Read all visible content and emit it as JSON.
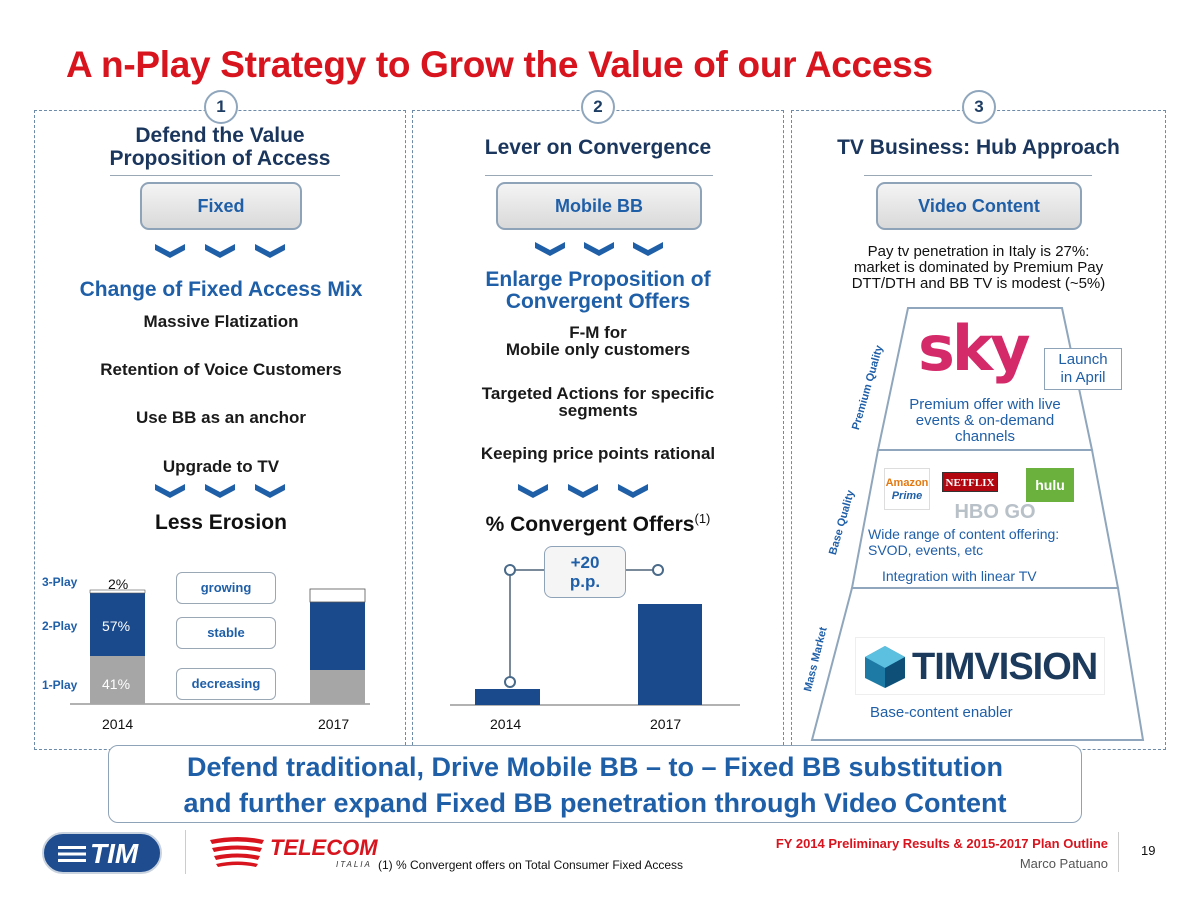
{
  "title": "A n-Play Strategy to Grow the Value of our Access",
  "columns": [
    {
      "number": "1",
      "heading_line1": "Defend the Value",
      "heading_line2": "Proposition of Access",
      "pill": "Fixed",
      "subhead": "Change of Fixed Access Mix",
      "items": [
        "Massive Flatization",
        "Retention of Voice Customers",
        "Use BB as an anchor",
        "Upgrade to TV"
      ],
      "result": "Less Erosion"
    },
    {
      "number": "2",
      "heading": "Lever on Convergence",
      "pill": "Mobile BB",
      "subhead_line1": "Enlarge Proposition of",
      "subhead_line2": "Convergent Offers",
      "items": [
        {
          "line1": "F-M for",
          "line2": "Mobile only customers"
        },
        {
          "line1": "Targeted Actions for specific",
          "line2": "segments"
        },
        {
          "line1": "Keeping price points rational",
          "line2": ""
        }
      ],
      "result": "% Convergent Offers",
      "result_sup": "(1)"
    },
    {
      "number": "3",
      "heading": "TV Business: Hub Approach",
      "pill": "Video Content",
      "intro_line1": "Pay tv penetration in Italy is 27%:",
      "intro_line2": "market is dominated by Premium Pay",
      "intro_line3": "DTT/DTH and BB TV is modest (~5%)",
      "tier_labels": [
        "Premium Quality",
        "Base Quality",
        "Mass Market"
      ],
      "sky_logo": "sky",
      "launch_line1": "Launch",
      "launch_line2": "in April",
      "premium_text_line1": "Premium offer with live",
      "premium_text_line2": "events & on-demand",
      "premium_text_line3": "channels",
      "logos": {
        "amazon_line1": "Amazon",
        "amazon_line2": "Prime",
        "netflix": "NETFLIX",
        "hulu": "hulu",
        "hbo": "HBO GO"
      },
      "base_text_line1": "Wide range of content offering:",
      "base_text_line2": "SVOD, events, etc",
      "base_text_line3": "Integration with linear TV",
      "timvision": "TIMVISION",
      "mass_text": "Base-content enabler"
    }
  ],
  "chart_data": [
    {
      "type": "bar",
      "stacked": true,
      "categories": [
        "2014",
        "2017"
      ],
      "series": [
        {
          "name": "1-Play",
          "values": [
            41,
            null
          ],
          "color": "#a6a6a6",
          "label": "decreasing"
        },
        {
          "name": "2-Play",
          "values": [
            57,
            null
          ],
          "color": "#1b4a8c",
          "label": "stable"
        },
        {
          "name": "3-Play",
          "values": [
            2,
            null
          ],
          "color": "#ffffff",
          "label": "growing"
        }
      ],
      "data_labels_2014": [
        "41%",
        "57%",
        "2%"
      ]
    },
    {
      "type": "bar",
      "categories": [
        "2014",
        "2017"
      ],
      "values": [
        null,
        null
      ],
      "annotation_line1": "+20",
      "annotation_line2": "p.p."
    }
  ],
  "bottom": {
    "line1": "Defend traditional, Drive Mobile BB – to – Fixed BB substitution",
    "line2": "and further expand Fixed BB penetration through Video Content"
  },
  "footer": {
    "tim_logo": "TIM",
    "telecom_logo": "TELECOM",
    "telecom_sub": "ITALIA",
    "note": "(1) % Convergent offers on Total Consumer Fixed Access",
    "right_title": "FY 2014 Preliminary Results & 2015-2017 Plan Outline",
    "presenter": "Marco Patuano",
    "page": "19"
  },
  "colors": {
    "red": "#d8141e",
    "blue": "#1f5fa8",
    "navy": "#1b4a8c",
    "gray": "#a6a6a6"
  }
}
